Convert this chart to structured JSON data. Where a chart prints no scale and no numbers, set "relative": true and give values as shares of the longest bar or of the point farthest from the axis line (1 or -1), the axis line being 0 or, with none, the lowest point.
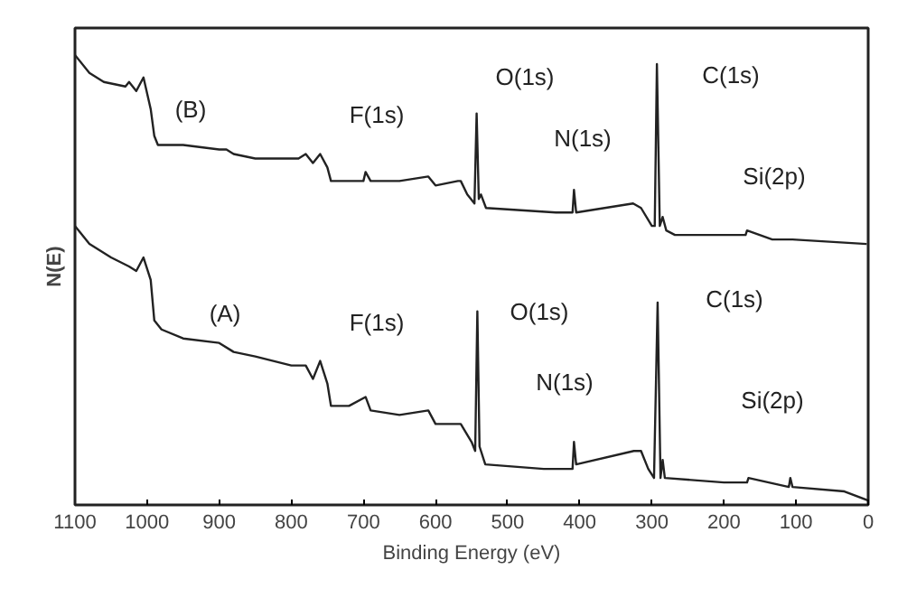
{
  "chart_data": {
    "type": "line",
    "relative": true,
    "xlabel": "Binding Energy (eV)",
    "ylabel": "N(E)",
    "xlim": [
      1100,
      0
    ],
    "xticks": [
      1100,
      1000,
      900,
      800,
      700,
      600,
      500,
      400,
      300,
      200,
      100,
      0
    ],
    "grid": false,
    "marker": "none",
    "line_style": "solid",
    "series": [
      {
        "color": "#222222",
        "x": [
          1100,
          1080,
          1060,
          1030,
          1025,
          1015,
          1005,
          995,
          990,
          985,
          950,
          900,
          890,
          880,
          850,
          790,
          780,
          770,
          760,
          750,
          745,
          700,
          697,
          690,
          650,
          610,
          600,
          569,
          565,
          556,
          546,
          543,
          540,
          537,
          530,
          433,
          410,
          408,
          405,
          326,
          315,
          300,
          296,
          293,
          289,
          285,
          280,
          268,
          170,
          168,
          133,
          108,
          105,
          2
        ],
        "values": [
          1.0,
          0.96,
          0.94,
          0.93,
          0.94,
          0.92,
          0.95,
          0.88,
          0.82,
          0.8,
          0.8,
          0.79,
          0.79,
          0.78,
          0.77,
          0.77,
          0.78,
          0.76,
          0.78,
          0.75,
          0.72,
          0.72,
          0.74,
          0.72,
          0.72,
          0.73,
          0.71,
          0.72,
          0.72,
          0.69,
          0.67,
          0.87,
          0.68,
          0.69,
          0.66,
          0.65,
          0.65,
          0.7,
          0.65,
          0.67,
          0.66,
          0.62,
          0.62,
          0.98,
          0.62,
          0.64,
          0.61,
          0.6,
          0.6,
          0.61,
          0.59,
          0.59,
          0.59,
          0.58
        ]
      },
      {
        "color": "#222222",
        "x": [
          1100,
          1080,
          1050,
          1025,
          1015,
          1005,
          995,
          990,
          980,
          950,
          900,
          880,
          850,
          800,
          780,
          770,
          760,
          750,
          745,
          720,
          697,
          690,
          650,
          610,
          600,
          567,
          565,
          550,
          545,
          542,
          539,
          531,
          450,
          410,
          408,
          405,
          325,
          315,
          305,
          297,
          292,
          288,
          285,
          282,
          200,
          168,
          166,
          110,
          108,
          105,
          33,
          0
        ],
        "values": [
          0.62,
          0.58,
          0.55,
          0.53,
          0.52,
          0.55,
          0.5,
          0.41,
          0.39,
          0.37,
          0.36,
          0.34,
          0.33,
          0.31,
          0.31,
          0.28,
          0.32,
          0.27,
          0.22,
          0.22,
          0.24,
          0.21,
          0.2,
          0.21,
          0.18,
          0.18,
          0.18,
          0.14,
          0.12,
          0.43,
          0.13,
          0.09,
          0.08,
          0.08,
          0.14,
          0.09,
          0.12,
          0.12,
          0.08,
          0.06,
          0.45,
          0.06,
          0.1,
          0.06,
          0.05,
          0.05,
          0.06,
          0.04,
          0.06,
          0.04,
          0.03,
          0.01
        ]
      }
    ],
    "annotations": [
      "(B)",
      "F(1s)",
      "O(1s)",
      "N(1s)",
      "C(1s)",
      "Si(2p)",
      "(A)",
      "F(1s)",
      "O(1s)",
      "N(1s)",
      "C(1s)",
      "Si(2p)"
    ]
  }
}
